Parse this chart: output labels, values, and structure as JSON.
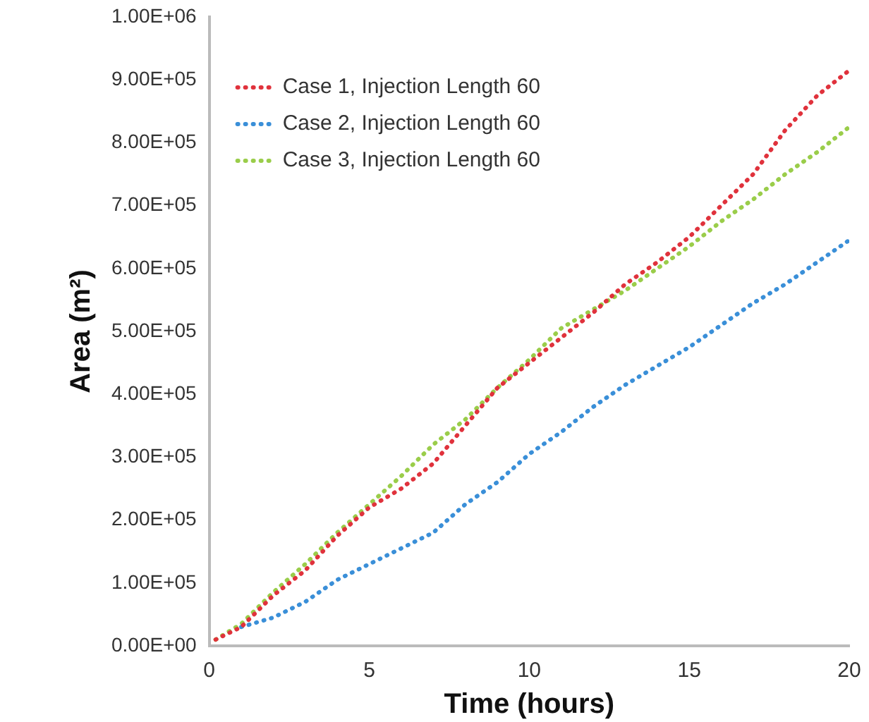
{
  "chart_data": {
    "type": "line",
    "xlabel": "Time (hours)",
    "ylabel": "Area (m²)",
    "x": [
      0.2,
      1,
      2,
      3,
      4,
      5,
      6,
      7,
      8,
      9,
      10,
      11,
      12,
      13,
      14,
      15,
      16,
      17,
      18,
      19,
      20
    ],
    "series": [
      {
        "name": "Case 1, Injection Length 60",
        "color": "#e0323c",
        "values": [
          10000,
          30000,
          80000,
          120000,
          175000,
          220000,
          250000,
          290000,
          350000,
          410000,
          450000,
          490000,
          530000,
          575000,
          610000,
          650000,
          700000,
          750000,
          820000,
          875000,
          915000
        ]
      },
      {
        "name": "Case 2, Injection Length 60",
        "color": "#3a8fd8",
        "x": [
          1,
          2,
          3,
          4,
          5,
          6,
          7,
          8,
          9,
          10,
          11,
          12,
          13,
          14,
          15,
          16,
          17,
          18,
          19,
          20
        ],
        "values": [
          30000,
          45000,
          70000,
          105000,
          130000,
          155000,
          180000,
          225000,
          260000,
          305000,
          340000,
          380000,
          415000,
          445000,
          475000,
          510000,
          545000,
          575000,
          610000,
          645000
        ]
      },
      {
        "name": "Case 3, Injection Length 60",
        "color": "#9acd4a",
        "values": [
          10000,
          35000,
          85000,
          130000,
          180000,
          225000,
          270000,
          320000,
          360000,
          410000,
          455000,
          505000,
          535000,
          565000,
          600000,
          635000,
          675000,
          710000,
          750000,
          785000,
          825000
        ]
      }
    ],
    "xlim": [
      0,
      20
    ],
    "xticks": [
      0,
      5,
      10,
      15,
      20
    ],
    "ylim": [
      0,
      1000000
    ],
    "yticks": [
      {
        "value": 0,
        "label": "0.00E+00"
      },
      {
        "value": 100000,
        "label": "1.00E+05"
      },
      {
        "value": 200000,
        "label": "2.00E+05"
      },
      {
        "value": 300000,
        "label": "3.00E+05"
      },
      {
        "value": 400000,
        "label": "4.00E+05"
      },
      {
        "value": 500000,
        "label": "5.00E+05"
      },
      {
        "value": 600000,
        "label": "6.00E+05"
      },
      {
        "value": 700000,
        "label": "7.00E+05"
      },
      {
        "value": 800000,
        "label": "8.00E+05"
      },
      {
        "value": 900000,
        "label": "9.00E+05"
      },
      {
        "value": 1000000,
        "label": "1.00E+06"
      }
    ],
    "grid": false,
    "legend": "top left",
    "marker": "none",
    "line_style": "dotted"
  }
}
